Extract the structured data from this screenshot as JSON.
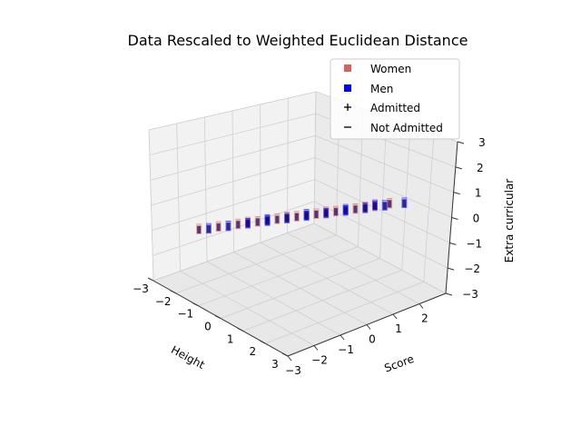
{
  "chart_data": {
    "type": "scatter",
    "title": "Data Rescaled to Weighted Euclidean Distance",
    "xlabel": "Height",
    "ylabel": "Score",
    "zlabel": "Extra curricular",
    "xlim": [
      -3,
      3
    ],
    "ylim": [
      -3,
      3
    ],
    "zlim": [
      -3,
      3
    ],
    "x_ticks": [
      "−3",
      "−2",
      "−1",
      "0",
      "1",
      "2",
      "3"
    ],
    "y_ticks": [
      "−3",
      "−2",
      "−1",
      "0",
      "1",
      "2"
    ],
    "z_ticks": [
      "−3",
      "−2",
      "−1",
      "0",
      "1",
      "2",
      "3"
    ],
    "grid": true,
    "legend_position": "top-right",
    "legend": [
      {
        "label": "Women",
        "marker": "square",
        "color": "#d9605e"
      },
      {
        "label": "Men",
        "marker": "square",
        "color": "#0000ff"
      },
      {
        "label": "Admitted",
        "marker": "+",
        "color": "#000000"
      },
      {
        "label": "Not Admitted",
        "marker": "−",
        "color": "#000000"
      }
    ],
    "colors": {
      "women": "#d9605e",
      "men": "#0000ff",
      "overlap": "#1a0a5c"
    },
    "series": [
      {
        "name": "Women",
        "points": [
          [
            -1.6,
            -2.4,
            -0.5
          ],
          [
            -1.2,
            -2.0,
            -0.35
          ],
          [
            -0.8,
            -1.6,
            -0.2
          ],
          [
            -0.4,
            -1.2,
            -0.05
          ],
          [
            0.0,
            -0.8,
            0.1
          ],
          [
            0.4,
            -0.4,
            0.25
          ],
          [
            0.8,
            0.0,
            0.4
          ],
          [
            1.2,
            0.4,
            0.55
          ],
          [
            1.6,
            0.8,
            0.7
          ],
          [
            2.0,
            1.2,
            0.85
          ],
          [
            2.3,
            1.5,
            1.0
          ],
          [
            -0.6,
            -1.4,
            -0.1
          ],
          [
            0.2,
            -0.6,
            0.2
          ],
          [
            1.0,
            0.2,
            0.5
          ],
          [
            1.8,
            1.0,
            0.8
          ]
        ]
      },
      {
        "name": "Men",
        "points": [
          [
            -1.4,
            -2.2,
            -0.45
          ],
          [
            -1.0,
            -1.8,
            -0.3
          ],
          [
            -0.6,
            -1.4,
            -0.15
          ],
          [
            -0.2,
            -1.0,
            0.0
          ],
          [
            0.2,
            -0.6,
            0.15
          ],
          [
            0.6,
            -0.2,
            0.3
          ],
          [
            1.0,
            0.2,
            0.45
          ],
          [
            1.4,
            0.6,
            0.6
          ],
          [
            1.8,
            1.0,
            0.75
          ],
          [
            2.2,
            1.4,
            0.9
          ],
          [
            2.6,
            1.8,
            1.05
          ],
          [
            -0.2,
            -1.0,
            0.05
          ],
          [
            0.6,
            -0.2,
            0.35
          ],
          [
            1.4,
            0.6,
            0.65
          ],
          [
            2.0,
            1.2,
            0.9
          ]
        ]
      }
    ]
  }
}
